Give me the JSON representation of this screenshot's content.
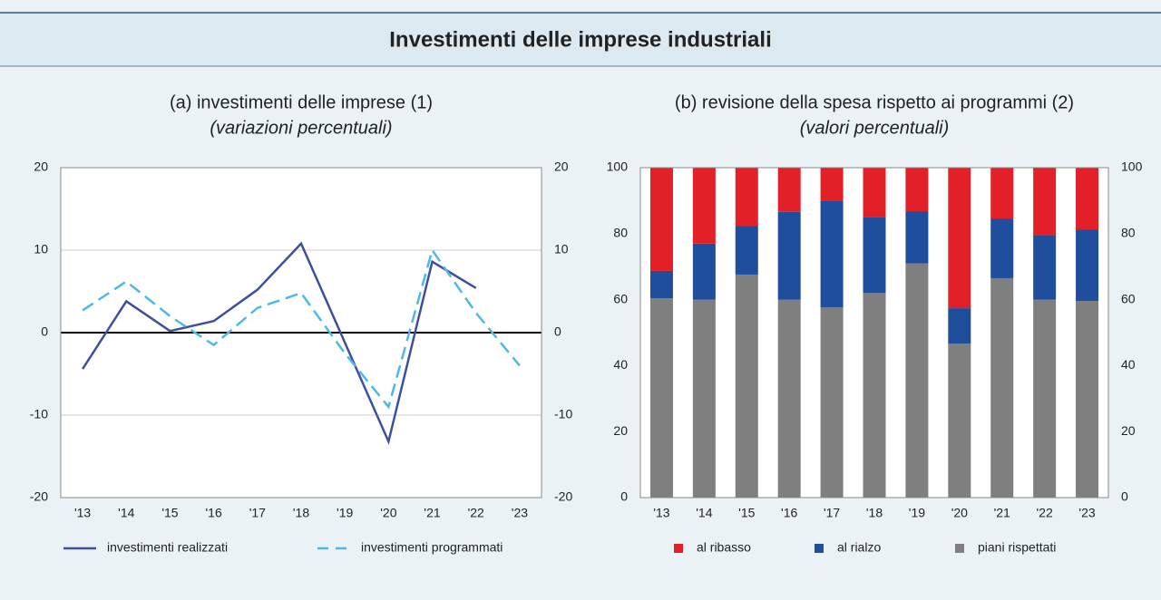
{
  "title": "Investimenti delle imprese industriali",
  "chart_data": [
    {
      "type": "line",
      "title": "(a) investimenti delle imprese (1)",
      "subtitle": "(variazioni percentuali)",
      "categories": [
        "'13",
        "'14",
        "'15",
        "'16",
        "'17",
        "'18",
        "'19",
        "'20",
        "'21",
        "'22",
        "'23"
      ],
      "series": [
        {
          "name": "investimenti realizzati",
          "color": "#3f4f9f",
          "dash": false,
          "values": [
            -4.4,
            3.8,
            0.2,
            1.4,
            5.2,
            10.8,
            -1.2,
            -13.2,
            8.6,
            5.4,
            null
          ]
        },
        {
          "name": "investimenti programmati",
          "color": "#4fb8e8",
          "dash": true,
          "values": [
            2.7,
            6.2,
            2.0,
            -1.5,
            3.0,
            4.8,
            -2.5,
            -9.0,
            10.0,
            2.4,
            -4.0
          ]
        }
      ],
      "ylim": [
        -20,
        20
      ],
      "yticks": [
        -20,
        -10,
        0,
        10,
        20
      ],
      "grid": true
    },
    {
      "type": "stacked_bar",
      "title": "(b) revisione della spesa rispetto ai programmi (2)",
      "subtitle": "(valori percentuali)",
      "categories": [
        "'13",
        "'14",
        "'15",
        "'16",
        "'17",
        "'18",
        "'19",
        "'20",
        "'21",
        "'22",
        "'23"
      ],
      "series": [
        {
          "name": "al ribasso",
          "color": "#e32028",
          "values": [
            31.3,
            23,
            17.6,
            13.4,
            10,
            15,
            13.2,
            42.6,
            15.4,
            20.6,
            18.7
          ]
        },
        {
          "name": "al rialzo",
          "color": "#1f4e9c",
          "values": [
            8.3,
            17,
            14.8,
            26.6,
            32.3,
            23,
            15.8,
            10.7,
            18.1,
            19.4,
            21.7
          ]
        },
        {
          "name": "piani rispettati",
          "color": "#7f7f7f",
          "values": [
            60.4,
            60,
            67.6,
            60,
            57.7,
            62,
            71,
            46.7,
            66.5,
            60,
            59.6
          ]
        }
      ],
      "ylim": [
        0,
        100
      ],
      "yticks": [
        0,
        20,
        40,
        60,
        80,
        100
      ],
      "grid": false
    }
  ]
}
